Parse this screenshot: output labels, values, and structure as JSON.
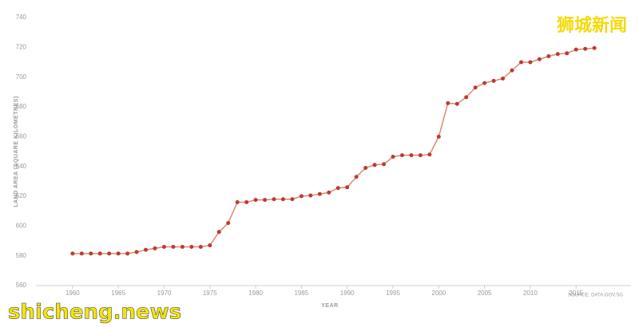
{
  "chart_data": {
    "type": "line",
    "y_label": "LAND AREA (SQUARE KILOMETRES)",
    "x_label": "YEAR",
    "source": "SOURCE: DATA.GOV.SG",
    "watermark_top": "狮城新闻",
    "watermark_bottom": "shicheng.news",
    "x": [
      1960,
      1961,
      1962,
      1963,
      1964,
      1965,
      1966,
      1967,
      1968,
      1969,
      1970,
      1971,
      1972,
      1973,
      1974,
      1975,
      1976,
      1977,
      1978,
      1979,
      1980,
      1981,
      1982,
      1983,
      1984,
      1985,
      1986,
      1987,
      1988,
      1989,
      1990,
      1991,
      1992,
      1993,
      1994,
      1995,
      1996,
      1997,
      1998,
      1999,
      2000,
      2001,
      2002,
      2003,
      2004,
      2005,
      2006,
      2007,
      2008,
      2009,
      2010,
      2011,
      2012,
      2013,
      2014,
      2015,
      2016,
      2017
    ],
    "series": [
      {
        "color": "#c0392b",
        "line_color": "#d98a78",
        "values": [
          581.5,
          581.5,
          581.5,
          581.5,
          581.5,
          581.5,
          581.5,
          582.5,
          584,
          585,
          586,
          586,
          586,
          586,
          586,
          587,
          596,
          602,
          616,
          616,
          617.5,
          617.5,
          618,
          618,
          618,
          620,
          620.5,
          621.5,
          622.5,
          625.5,
          626,
          633,
          639,
          641,
          641.5,
          646.5,
          647.5,
          647.5,
          647.5,
          648,
          660,
          682.5,
          682,
          686.5,
          693,
          696,
          697.5,
          699,
          704.5,
          710,
          710,
          712,
          714,
          715.5,
          716,
          718.5,
          719,
          719.5
        ]
      }
    ],
    "xlim": [
      1956,
      2021
    ],
    "xticks": [
      1960,
      1965,
      1970,
      1975,
      1980,
      1985,
      1990,
      1995,
      2000,
      2005,
      2010,
      2015
    ],
    "ylim": [
      560,
      740
    ],
    "yticks": [
      560,
      580,
      600,
      620,
      640,
      660,
      680,
      700,
      720,
      740
    ],
    "grid": false
  }
}
